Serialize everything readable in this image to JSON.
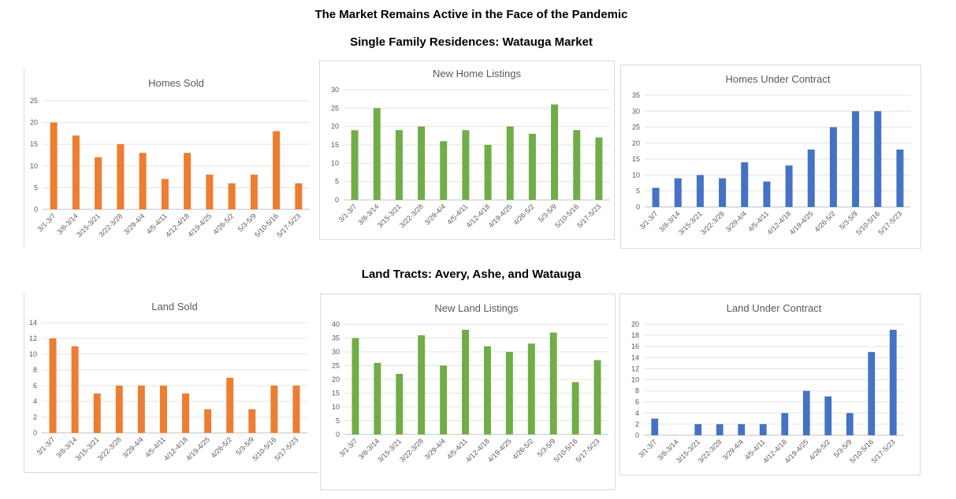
{
  "page": {
    "title": "The Market Remains Active in the Face of the Pandemic",
    "section1": "Single Family Residences:  Watauga Market",
    "section2": "Land Tracts:  Avery, Ashe, and Watauga"
  },
  "chart_data": [
    {
      "id": "homes-sold",
      "type": "bar",
      "title": "Homes Sold",
      "color": "#ED7D31",
      "categories": [
        "3/1-3/7",
        "3/8-3/14",
        "3/15-3/21",
        "3/22-3/28",
        "3/29-4/4",
        "4/5-4/11",
        "4/12-4/18",
        "4/19-4/25",
        "4/26-5/2",
        "5/3-5/9",
        "5/10-5/16",
        "5/17-5/23"
      ],
      "values": [
        20,
        17,
        12,
        15,
        13,
        7,
        13,
        8,
        6,
        8,
        18,
        6
      ],
      "ylim": [
        0,
        25
      ],
      "yticks": [
        0,
        5,
        10,
        15,
        20,
        25
      ],
      "grid": true
    },
    {
      "id": "new-home-listings",
      "type": "bar",
      "title": "New Home Listings",
      "color": "#70AD47",
      "categories": [
        "3/1-3/7",
        "3/8-3/14",
        "3/15-3/21",
        "3/22-3/28",
        "3/29-4/4",
        "4/5-4/11",
        "4/12-4/18",
        "4/19-4/25",
        "4/26-5/2",
        "5/3-5/9",
        "5/10-5/16",
        "5/17-5/23"
      ],
      "values": [
        19,
        25,
        19,
        20,
        16,
        19,
        15,
        20,
        18,
        26,
        19,
        17
      ],
      "ylim": [
        0,
        30
      ],
      "yticks": [
        0,
        5,
        10,
        15,
        20,
        25,
        30
      ],
      "grid": true
    },
    {
      "id": "homes-under-contract",
      "type": "bar",
      "title": "Homes Under Contract",
      "color": "#4472C4",
      "categories": [
        "3/1-3/7",
        "3/8-3/14",
        "3/15-3/21",
        "3/22-3/28",
        "3/29-4/4",
        "4/5-4/11",
        "4/12-4/18",
        "4/19-4/25",
        "4/26-5/2",
        "5/3-5/9",
        "5/10-5/16",
        "5/17-5/23"
      ],
      "values": [
        6,
        9,
        10,
        9,
        14,
        8,
        13,
        18,
        25,
        30,
        30,
        18
      ],
      "ylim": [
        0,
        35
      ],
      "yticks": [
        0,
        5,
        10,
        15,
        20,
        25,
        30,
        35
      ],
      "grid": true
    },
    {
      "id": "land-sold",
      "type": "bar",
      "title": "Land Sold",
      "color": "#ED7D31",
      "categories": [
        "3/1-3/7",
        "3/8-3/14",
        "3/15-3/21",
        "3/22-3/28",
        "3/29-4/4",
        "4/5-4/11",
        "4/12-4/18",
        "4/19-4/25",
        "4/26-5/2",
        "5/3-5/9",
        "5/10-5/16",
        "5/17-5/23"
      ],
      "values": [
        12,
        11,
        5,
        6,
        6,
        6,
        5,
        3,
        7,
        3,
        6,
        6
      ],
      "ylim": [
        0,
        14
      ],
      "yticks": [
        0,
        2,
        4,
        6,
        8,
        10,
        12,
        14
      ],
      "grid": true
    },
    {
      "id": "new-land-listings",
      "type": "bar",
      "title": "New Land Listings",
      "color": "#70AD47",
      "categories": [
        "3/1-3/7",
        "3/8-3/14",
        "3/15-3/21",
        "3/22-3/28",
        "3/29-4/4",
        "4/5-4/11",
        "4/12-4/18",
        "4/19-4/25",
        "4/26-5/2",
        "5/3-5/9",
        "5/10-5/16",
        "5/17-5/23"
      ],
      "values": [
        35,
        26,
        22,
        36,
        25,
        38,
        32,
        30,
        33,
        37,
        19,
        27
      ],
      "ylim": [
        0,
        40
      ],
      "yticks": [
        0,
        5,
        10,
        15,
        20,
        25,
        30,
        35,
        40
      ],
      "grid": true
    },
    {
      "id": "land-under-contract",
      "type": "bar",
      "title": "Land Under Contract",
      "color": "#4472C4",
      "categories": [
        "3/1-3/7",
        "3/8-3/14",
        "3/15-3/21",
        "3/22-3/28",
        "3/29-4/4",
        "4/5-4/11",
        "4/12-4/18",
        "4/19-4/25",
        "4/26-5/2",
        "5/3-5/9",
        "5/10-5/16",
        "5/17-5/23"
      ],
      "values": [
        3,
        0,
        2,
        2,
        2,
        2,
        4,
        8,
        7,
        4,
        15,
        19
      ],
      "ylim": [
        0,
        20
      ],
      "yticks": [
        0,
        2,
        4,
        6,
        8,
        10,
        12,
        14,
        16,
        18,
        20
      ],
      "grid": true
    }
  ]
}
